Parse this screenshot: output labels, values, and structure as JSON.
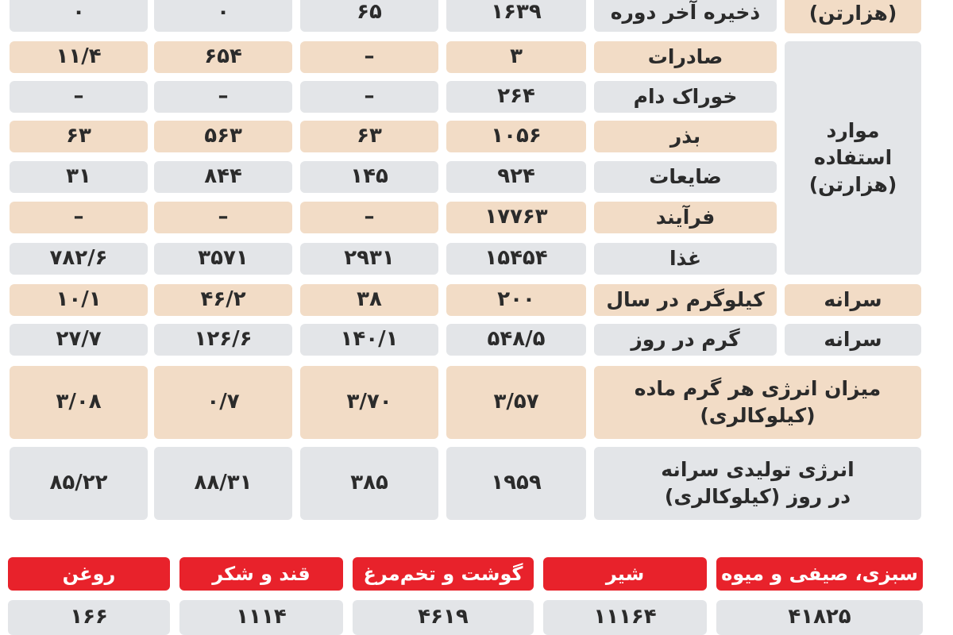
{
  "table": {
    "groups": {
      "stock_unit": "(هزارتن)",
      "usage": "موارد استفاده\n(هزارتن)",
      "per_capita_1": "سرانه",
      "per_capita_2": "سرانه"
    },
    "rows": [
      {
        "label": "ذخیره آخر دوره",
        "values": [
          "۱۶۳۹",
          "۶۵",
          "۰",
          "۰"
        ]
      },
      {
        "label": "صادرات",
        "values": [
          "۳",
          "–",
          "۶۵۴",
          "۱۱/۴"
        ]
      },
      {
        "label": "خوراک دام",
        "values": [
          "۲۶۴",
          "–",
          "–",
          "–"
        ]
      },
      {
        "label": "بذر",
        "values": [
          "۱۰۵۶",
          "۶۳",
          "۵۶۳",
          "۶۳"
        ]
      },
      {
        "label": "ضایعات",
        "values": [
          "۹۲۴",
          "۱۴۵",
          "۸۴۴",
          "۳۱"
        ]
      },
      {
        "label": "فرآیند",
        "values": [
          "۱۷۷۶۳",
          "–",
          "–",
          "–"
        ]
      },
      {
        "label": "غذا",
        "values": [
          "۱۵۴۵۴",
          "۲۹۳۱",
          "۳۵۷۱",
          "۷۸۲/۶"
        ]
      },
      {
        "label": "کیلوگرم در سال",
        "values": [
          "۲۰۰",
          "۳۸",
          "۴۶/۲",
          "۱۰/۱"
        ]
      },
      {
        "label": "گرم در روز",
        "values": [
          "۵۴۸/۵",
          "۱۴۰/۱",
          "۱۲۶/۶",
          "۲۷/۷"
        ]
      },
      {
        "label": "میزان انرژی هر گرم ماده\n(کیلوکالری)",
        "values": [
          "۳/۵۷",
          "۳/۷۰",
          "۰/۷",
          "۳/۰۸"
        ]
      },
      {
        "label": "انرژی تولیدی سرانه\nدر روز (کیلوکالری)",
        "values": [
          "۱۹۵۹",
          "۳۸۵",
          "۸۸/۳۱",
          "۸۵/۲۲"
        ]
      }
    ]
  },
  "bottom": {
    "headers": [
      "سبزی، صیفی و میوه",
      "شیر",
      "گوشت و تخم‌مرغ",
      "قند و شکر",
      "روغن"
    ],
    "values": [
      "۴۱۸۲۵",
      "۱۱۱۶۴",
      "۴۶۱۹",
      "۱۱۱۴",
      "۱۶۶"
    ]
  },
  "colors": {
    "gray": "#e3e5e8",
    "beige": "#f2dcc6",
    "red": "#e8222b"
  }
}
